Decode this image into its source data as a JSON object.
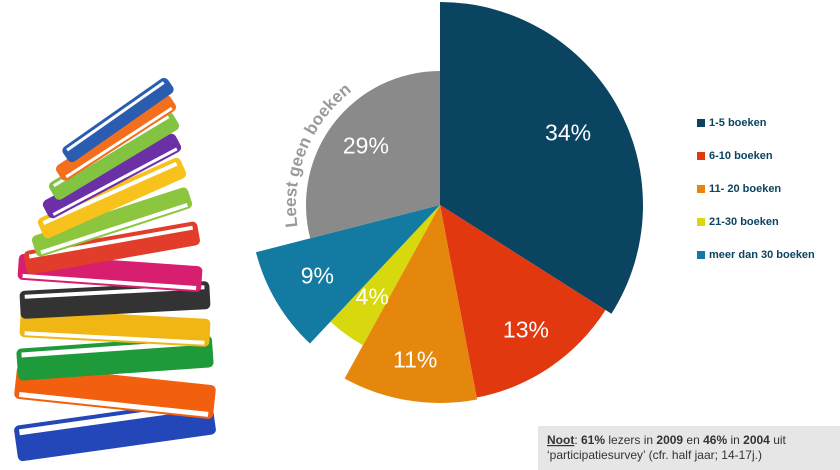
{
  "chart_data": {
    "type": "pie",
    "categories": [
      "1-5 boeken",
      "6-10 boeken",
      "11- 20 boeken",
      "21-30 boeken",
      "meer dan 30 boeken",
      "Leest geen boeken"
    ],
    "values": [
      34,
      13,
      11,
      4,
      9,
      29
    ],
    "value_labels": [
      "34%",
      "13%",
      "11%",
      "4%",
      "9%",
      "29%"
    ],
    "colors": [
      "#0b4460",
      "#e1380f",
      "#e5870c",
      "#d8d80e",
      "#137aa2",
      "#8a8a8a"
    ],
    "legend": "right"
  },
  "note": {
    "label": "Noot",
    "line1": [
      {
        "text": ": ",
        "bold": false
      },
      {
        "text": "61%",
        "bold": true
      },
      {
        "text": " lezers in ",
        "bold": false
      },
      {
        "text": "2009",
        "bold": true
      },
      {
        "text": " en ",
        "bold": false
      },
      {
        "text": "46%",
        "bold": true
      },
      {
        "text": " in ",
        "bold": false
      },
      {
        "text": "2004",
        "bold": true
      },
      {
        "text": " uit",
        "bold": false
      }
    ],
    "line2": "‘participatiesurvey’ (cfr. half jaar; 14-17j.)"
  }
}
